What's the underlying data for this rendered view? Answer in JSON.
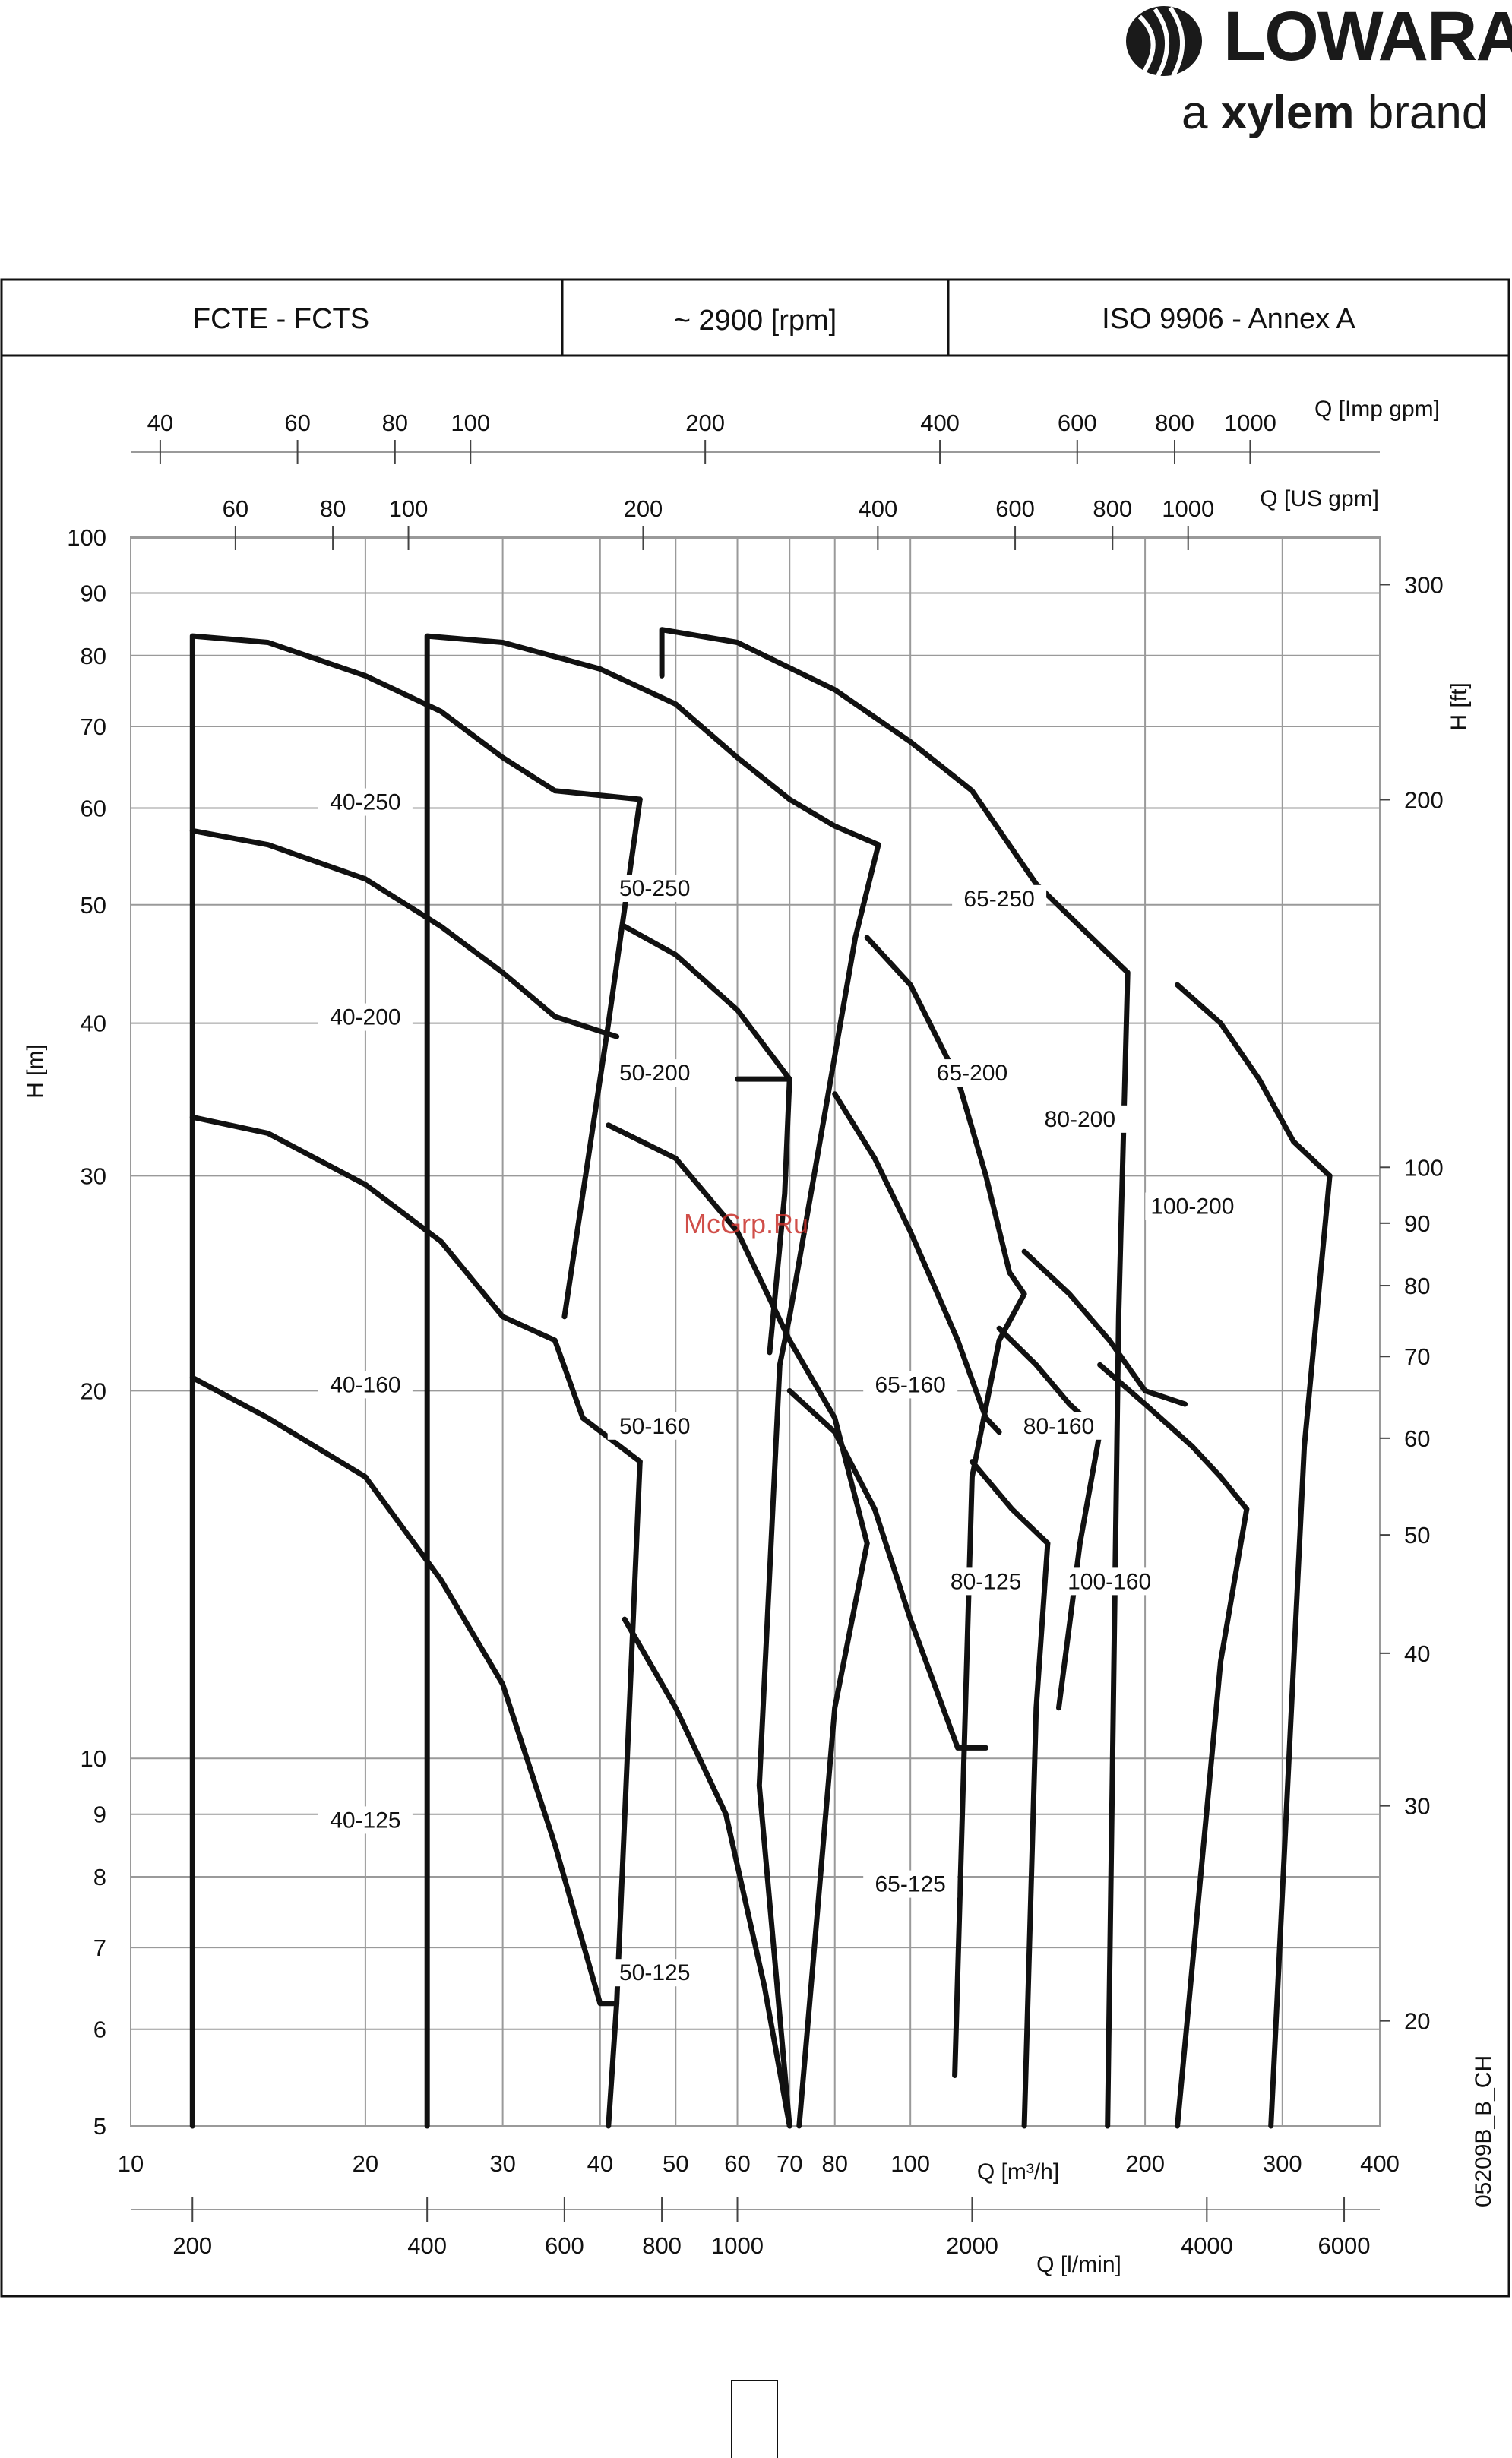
{
  "brand": {
    "name": "LOWARA",
    "tagline_prefix": "a ",
    "tagline_bold": "xylem",
    "tagline_suffix": " brand"
  },
  "header": {
    "cell_1": "FCTE - FCTS",
    "cell_2": "~ 2900 [rpm]",
    "cell_3": "ISO 9906 - Annex A"
  },
  "watermark": "McGrp.Ru",
  "code": "05209B_B_CH",
  "colors": {
    "curves": "#111111",
    "grid": "#9a9a9a",
    "watermark": "#c8302a"
  },
  "chart_data": {
    "type": "line",
    "scale": "log-log",
    "grid": true,
    "x_axis": {
      "label": "Q [m³/h]",
      "ticks": [
        10,
        20,
        30,
        40,
        50,
        60,
        70,
        80,
        100,
        200,
        300,
        400
      ],
      "range": [
        10,
        400
      ]
    },
    "y_axis": {
      "label": "H [m]",
      "ticks": [
        5,
        6,
        7,
        8,
        9,
        10,
        20,
        30,
        40,
        50,
        60,
        70,
        80,
        90,
        100
      ],
      "range": [
        5,
        100
      ]
    },
    "secondary_axes": {
      "imp_gpm": {
        "label": "Q [Imp gpm]",
        "ticks": [
          40,
          60,
          80,
          100,
          200,
          400,
          600,
          800,
          1000
        ]
      },
      "us_gpm": {
        "label": "Q [US gpm]",
        "ticks": [
          60,
          80,
          100,
          200,
          400,
          600,
          800,
          1000
        ]
      },
      "l_min": {
        "label": "Q [l/min]",
        "ticks": [
          200,
          400,
          600,
          800,
          1000,
          2000,
          4000,
          6000
        ]
      },
      "h_ft": {
        "label": "H [ft]",
        "ticks": [
          20,
          30,
          40,
          50,
          60,
          70,
          80,
          90,
          100,
          200,
          300
        ]
      }
    },
    "regions": [
      {
        "name": "40-250",
        "label_at": [
          20,
          60
        ],
        "segments": [
          [
            [
              12,
              5
            ],
            [
              12,
              83
            ],
            [
              15,
              82
            ],
            [
              20,
              77
            ],
            [
              25,
              72
            ],
            [
              30,
              66
            ],
            [
              35,
              62
            ],
            [
              45,
              61
            ]
          ],
          [
            [
              45,
              61
            ],
            [
              41,
              40
            ],
            [
              36,
              23
            ]
          ]
        ]
      },
      {
        "name": "40-200",
        "label_at": [
          20,
          40
        ],
        "segments": [
          [
            [
              12,
              57.5
            ],
            [
              15,
              56
            ],
            [
              20,
              52.5
            ],
            [
              25,
              48
            ],
            [
              30,
              44
            ],
            [
              35,
              40.5
            ],
            [
              42,
              39
            ]
          ]
        ]
      },
      {
        "name": "40-160",
        "label_at": [
          20,
          20
        ],
        "segments": [
          [
            [
              12,
              33.5
            ],
            [
              15,
              32.5
            ],
            [
              20,
              29.5
            ],
            [
              25,
              26.5
            ],
            [
              30,
              23
            ],
            [
              35,
              22
            ],
            [
              38,
              19
            ],
            [
              45,
              17.5
            ]
          ],
          [
            [
              45,
              17.5
            ],
            [
              42,
              6.3
            ],
            [
              41,
              5
            ]
          ]
        ]
      },
      {
        "name": "40-125",
        "label_at": [
          20,
          8.8
        ],
        "segments": [
          [
            [
              12,
              20.5
            ],
            [
              15,
              19
            ],
            [
              20,
              17
            ],
            [
              25,
              14
            ],
            [
              30,
              11.5
            ],
            [
              35,
              8.5
            ],
            [
              40,
              6.3
            ],
            [
              42,
              6.3
            ]
          ]
        ]
      },
      {
        "name": "50-250",
        "label_at": [
          47,
          51
        ],
        "segments": [
          [
            [
              24,
              5
            ],
            [
              24,
              77
            ],
            [
              24,
              83
            ],
            [
              30,
              82
            ],
            [
              40,
              78
            ],
            [
              50,
              73
            ],
            [
              60,
              66
            ],
            [
              70,
              61
            ],
            [
              80,
              58
            ],
            [
              91,
              56
            ]
          ],
          [
            [
              91,
              56
            ],
            [
              85,
              47
            ],
            [
              70,
              23
            ],
            [
              68,
              21
            ],
            [
              64,
              9.5
            ],
            [
              70,
              5
            ]
          ]
        ]
      },
      {
        "name": "50-200",
        "label_at": [
          47,
          36
        ],
        "segments": [
          [
            [
              43,
              48
            ],
            [
              50,
              45.5
            ],
            [
              60,
              41
            ],
            [
              70,
              36
            ],
            [
              60,
              36
            ]
          ],
          [
            [
              70,
              36
            ],
            [
              69,
              29
            ],
            [
              66,
              21.5
            ]
          ]
        ]
      },
      {
        "name": "50-160",
        "label_at": [
          47,
          18.5
        ],
        "segments": [
          [
            [
              41,
              33
            ],
            [
              50,
              31
            ],
            [
              60,
              27
            ],
            [
              70,
              22
            ],
            [
              80,
              19
            ],
            [
              88,
              15
            ]
          ],
          [
            [
              88,
              15
            ],
            [
              80,
              11
            ],
            [
              72,
              5
            ]
          ]
        ]
      },
      {
        "name": "50-125",
        "label_at": [
          47,
          6.6
        ],
        "segments": [
          [
            [
              43,
              13
            ],
            [
              50,
              11
            ],
            [
              58,
              9
            ],
            [
              65,
              6.5
            ],
            [
              70,
              5
            ]
          ]
        ]
      },
      {
        "name": "65-250",
        "label_at": [
          130,
          50
        ],
        "segments": [
          [
            [
              48,
              77
            ],
            [
              48,
              84
            ],
            [
              60,
              82
            ],
            [
              80,
              75
            ],
            [
              100,
              68
            ],
            [
              120,
              62
            ],
            [
              145,
              52
            ],
            [
              165,
              48
            ],
            [
              190,
              44
            ]
          ],
          [
            [
              190,
              44
            ],
            [
              185,
              23
            ],
            [
              179,
              5
            ]
          ]
        ]
      },
      {
        "name": "65-200",
        "label_at": [
          120,
          36
        ],
        "segments": [
          [
            [
              88,
              47
            ],
            [
              100,
              43
            ],
            [
              115,
              36
            ],
            [
              125,
              30
            ],
            [
              134,
              25
            ],
            [
              140,
              24
            ]
          ],
          [
            [
              140,
              24
            ],
            [
              130,
              22
            ],
            [
              120,
              17
            ],
            [
              114,
              5.5
            ]
          ]
        ]
      },
      {
        "name": "65-160",
        "label_at": [
          100,
          20
        ],
        "segments": [
          [
            [
              80,
              35
            ],
            [
              90,
              31
            ],
            [
              100,
              27
            ],
            [
              115,
              22
            ],
            [
              125,
              19
            ],
            [
              130,
              18.5
            ]
          ]
        ]
      },
      {
        "name": "65-125",
        "label_at": [
          100,
          7.8
        ],
        "segments": [
          [
            [
              70,
              20
            ],
            [
              80,
              18.5
            ],
            [
              90,
              16
            ],
            [
              100,
              13
            ],
            [
              115,
              10.2
            ],
            [
              125,
              10.2
            ]
          ]
        ]
      },
      {
        "name": "80-200",
        "label_at": [
          165,
          33
        ],
        "segments": [
          [
            [
              140,
              26
            ],
            [
              160,
              24
            ],
            [
              180,
              22
            ],
            [
              200,
              20
            ],
            [
              225,
              19.5
            ]
          ]
        ]
      },
      {
        "name": "80-160",
        "label_at": [
          155,
          18.5
        ],
        "segments": [
          [
            [
              130,
              22.5
            ],
            [
              145,
              21
            ],
            [
              160,
              19.5
            ],
            [
              175,
              18.5
            ]
          ],
          [
            [
              175,
              18.5
            ],
            [
              165,
              15
            ],
            [
              155,
              11
            ]
          ]
        ]
      },
      {
        "name": "80-125",
        "label_at": [
          125,
          13.8
        ],
        "segments": [
          [
            [
              120,
              17.5
            ],
            [
              135,
              16
            ],
            [
              150,
              15
            ]
          ],
          [
            [
              150,
              15
            ],
            [
              145,
              11
            ],
            [
              140,
              5
            ]
          ]
        ]
      },
      {
        "name": "100-200",
        "label_at": [
          230,
          28
        ],
        "segments": [
          [
            [
              220,
              43
            ],
            [
              250,
              40
            ],
            [
              280,
              36
            ],
            [
              310,
              32
            ],
            [
              345,
              30
            ]
          ],
          [
            [
              345,
              30
            ],
            [
              320,
              18
            ],
            [
              290,
              5
            ]
          ]
        ]
      },
      {
        "name": "100-160",
        "label_at": [
          180,
          13.8
        ],
        "segments": [
          [
            [
              175,
              21
            ],
            [
              200,
              19.5
            ],
            [
              230,
              18
            ],
            [
              250,
              17
            ],
            [
              270,
              16
            ]
          ],
          [
            [
              270,
              16
            ],
            [
              250,
              12
            ],
            [
              220,
              5
            ]
          ]
        ]
      }
    ]
  }
}
